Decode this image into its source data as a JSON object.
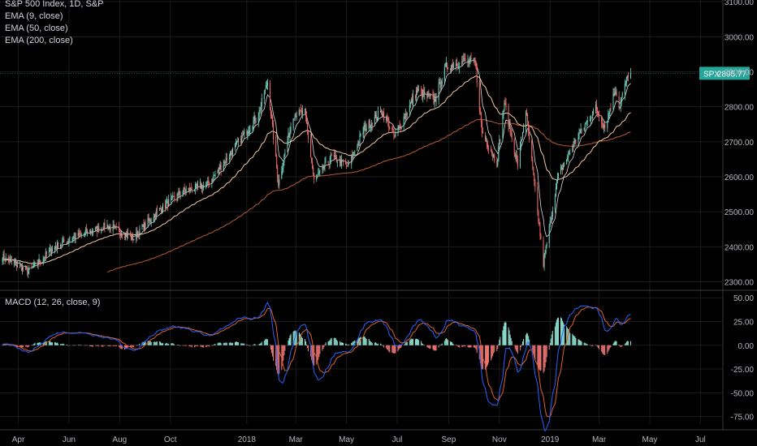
{
  "main_legend": {
    "symbol_line": "S&P 500 Index, 1D, S&P",
    "indicators": [
      "EMA (9, close)",
      "EMA (50, close)",
      "EMA (200, close)"
    ]
  },
  "macd_legend": {
    "title": "MACD (12, 26, close, 9)"
  },
  "price_label": {
    "symbol": "SPX",
    "value": "2895.77"
  },
  "colors": {
    "background": "#000000",
    "candle_up": "#6fcfbf",
    "candle_down": "#ef6b6b",
    "ema9": "#ffffff",
    "ema50": "#f2c9a0",
    "ema200": "#b85c2e",
    "macd_line": "#2962ff",
    "signal_line": "#e0622a",
    "hist_up": "#8ee0d0",
    "hist_down": "#f07575",
    "price_tag": "#26a69a",
    "axis_text": "#b2b5be",
    "grid": "#1b1b1b"
  },
  "chart_data": [
    {
      "type": "candlestick",
      "panel": "price",
      "title": "S&P 500 Index, 1D, S&P",
      "y_ticks": [
        2300,
        2400,
        2500,
        2600,
        2700,
        2800,
        2900,
        3000,
        3100
      ],
      "y_tick_labels": [
        "2300.00",
        "2400.00",
        "2500.00",
        "2600.00",
        "2700.00",
        "2800.00",
        "2900.00",
        "3000.00",
        "3100.00"
      ],
      "ylim": [
        2278,
        3105
      ],
      "x_tick_labels": [
        "Apr",
        "Jun",
        "Aug",
        "Oct",
        "2018",
        "Mar",
        "May",
        "Jul",
        "Sep",
        "Nov",
        "2019",
        "Mar",
        "May",
        "Jul"
      ],
      "x_tick_dates": [
        "2017-04-01",
        "2017-06-01",
        "2017-08-01",
        "2017-10-01",
        "2018-01-01",
        "2018-03-01",
        "2018-05-01",
        "2018-07-01",
        "2018-09-01",
        "2018-11-01",
        "2019-01-01",
        "2019-03-01",
        "2019-05-01",
        "2019-07-01"
      ],
      "xlim": [
        "2017-03-10",
        "2019-07-27"
      ],
      "close_path": [
        [
          "2017-03-13",
          2372
        ],
        [
          "2017-04-13",
          2330
        ],
        [
          "2017-05-15",
          2400
        ],
        [
          "2017-06-15",
          2435
        ],
        [
          "2017-07-17",
          2460
        ],
        [
          "2017-08-18",
          2425
        ],
        [
          "2017-09-15",
          2500
        ],
        [
          "2017-10-16",
          2558
        ],
        [
          "2017-11-15",
          2578
        ],
        [
          "2017-12-15",
          2675
        ],
        [
          "2018-01-15",
          2778
        ],
        [
          "2018-01-26",
          2872
        ],
        [
          "2018-02-08",
          2581
        ],
        [
          "2018-02-26",
          2779
        ],
        [
          "2018-03-12",
          2783
        ],
        [
          "2018-03-23",
          2588
        ],
        [
          "2018-04-13",
          2656
        ],
        [
          "2018-05-03",
          2630
        ],
        [
          "2018-05-21",
          2733
        ],
        [
          "2018-06-12",
          2786
        ],
        [
          "2018-06-28",
          2716
        ],
        [
          "2018-07-25",
          2846
        ],
        [
          "2018-08-15",
          2818
        ],
        [
          "2018-08-29",
          2914
        ],
        [
          "2018-09-20",
          2930
        ],
        [
          "2018-10-03",
          2925
        ],
        [
          "2018-10-11",
          2728
        ],
        [
          "2018-10-29",
          2641
        ],
        [
          "2018-11-07",
          2813
        ],
        [
          "2018-11-23",
          2633
        ],
        [
          "2018-12-03",
          2790
        ],
        [
          "2018-12-24",
          2351
        ],
        [
          "2019-01-10",
          2596
        ],
        [
          "2019-02-01",
          2706
        ],
        [
          "2019-02-25",
          2796
        ],
        [
          "2019-03-08",
          2743
        ],
        [
          "2019-03-21",
          2854
        ],
        [
          "2019-03-25",
          2798
        ],
        [
          "2019-04-05",
          2892
        ],
        [
          "2019-04-08",
          2895.77
        ]
      ],
      "last_close": 2895.77,
      "series": [
        {
          "name": "EMA (9, close)",
          "period": 9
        },
        {
          "name": "EMA (50, close)",
          "period": 50
        },
        {
          "name": "EMA (200, close)",
          "period": 200
        }
      ]
    },
    {
      "type": "macd",
      "panel": "indicator",
      "title": "MACD (12, 26, close, 9)",
      "y_ticks": [
        50,
        25,
        0,
        -25,
        -50,
        -75
      ],
      "y_tick_labels": [
        "50.00",
        "25.00",
        "0.00",
        "-25.00",
        "-50.00",
        "-75.00"
      ],
      "ylim": [
        -83,
        57
      ],
      "series": [
        {
          "name": "MACD",
          "period_fast": 12,
          "period_slow": 26
        },
        {
          "name": "Signal",
          "period": 9
        },
        {
          "name": "Histogram"
        }
      ]
    }
  ]
}
